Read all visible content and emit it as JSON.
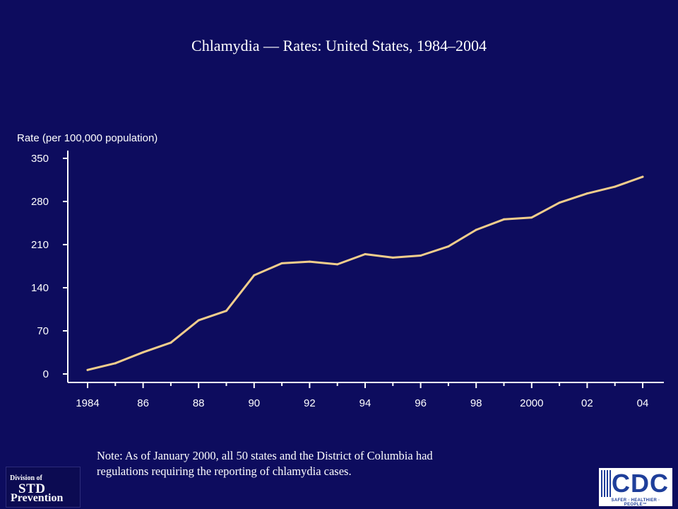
{
  "chart_data": {
    "type": "line",
    "title": "Chlamydia — Rates: United States, 1984–2004",
    "ylabel": "Rate (per 100,000 population)",
    "xlabel": "",
    "x": [
      1984,
      1985,
      1986,
      1987,
      1988,
      1989,
      1990,
      1991,
      1992,
      1993,
      1994,
      1995,
      1996,
      1997,
      1998,
      1999,
      2000,
      2001,
      2002,
      2003,
      2004
    ],
    "series": [
      {
        "values": [
          6.5,
          17.4,
          35.2,
          50.8,
          87.1,
          102.5,
          160.2,
          179.7,
          182.3,
          178.0,
          194.5,
          188.9,
          192.2,
          207.0,
          234.0,
          251.0,
          254.0,
          278.0,
          293.0,
          304.0,
          320.0
        ]
      }
    ],
    "xtick_values": [
      1984,
      1986,
      1988,
      1990,
      1992,
      1994,
      1996,
      1998,
      2000,
      2002,
      2004
    ],
    "xtick_labels": [
      "1984",
      "86",
      "88",
      "90",
      "92",
      "94",
      "96",
      "98",
      "2000",
      "02",
      "04"
    ],
    "yticks": [
      0,
      70,
      140,
      210,
      280,
      350
    ],
    "ylim": [
      0,
      350
    ],
    "xlim": [
      1984,
      2004
    ],
    "grid": false,
    "line_color": "#f0cd8c"
  },
  "note": {
    "line1": "Note: As of January 2000, all 50 states and the District of Columbia had",
    "line2": "regulations requiring the reporting of chlamydia cases."
  },
  "logos": {
    "std": {
      "line1": "Division of",
      "line2": "STD",
      "line3": "Prevention"
    },
    "cdc": {
      "name": "CDC",
      "tagline": "SAFER · HEALTHIER · PEOPLE™"
    }
  }
}
